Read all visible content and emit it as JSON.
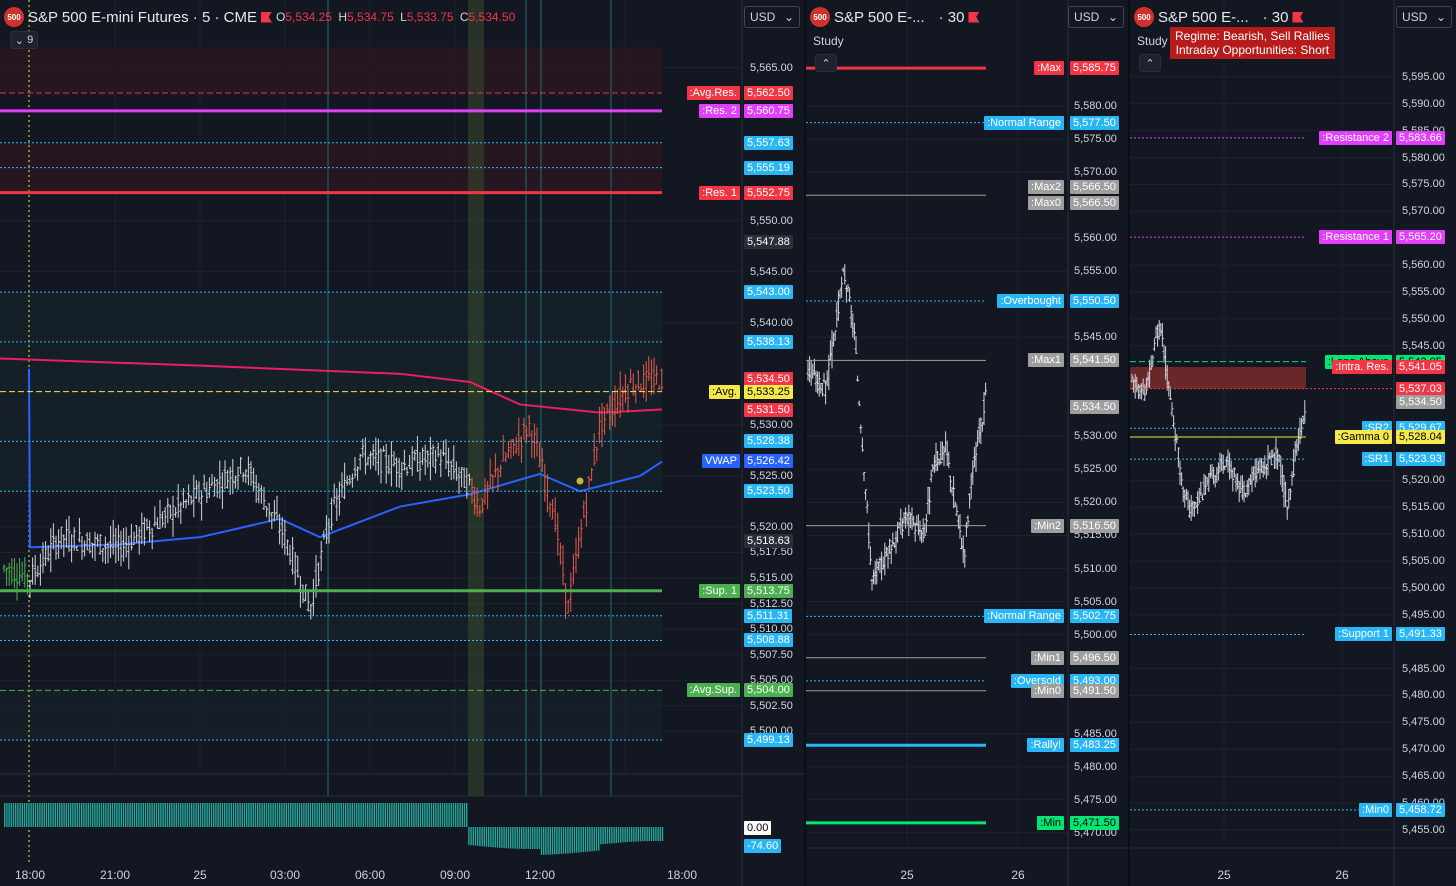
{
  "colors": {
    "red": "#f23645",
    "pink": "#e91e63",
    "magenta": "#e040fb",
    "green": "#4caf50",
    "lime": "#00e676",
    "yellow": "#f5e94a",
    "blue": "#2962ff",
    "cyan": "#29b6f6",
    "gray": "#9e9e9e",
    "panel_bg": "#131722"
  },
  "pane1": {
    "badge": "500",
    "title": "S&P 500 E-mini Futures · 5 · CME",
    "ohlc": [
      {
        "k": "O",
        "v": "5,534.25"
      },
      {
        "k": "H",
        "v": "5,534.75"
      },
      {
        "k": "L",
        "v": "5,533.75"
      },
      {
        "k": "C",
        "v": "5,534.50"
      }
    ],
    "indicator_count": "9",
    "currency": "USD",
    "price_min": 5496,
    "price_max": 5567.5,
    "ticks": [
      "5,565.00",
      "5,550.00",
      "5,545.00",
      "5,540.00",
      "5,530.00",
      "5,525.00",
      "5,520.00",
      "5,517.50",
      "5,515.00",
      "5,512.50",
      "5,510.00",
      "5,507.50",
      "5,505.00",
      "5,502.50",
      "5,500.00"
    ],
    "tick_values": [
      5565,
      5550,
      5545,
      5540,
      5530,
      5525,
      5520,
      5517.5,
      5515,
      5512.5,
      5510,
      5507.5,
      5505,
      5502.5,
      5500
    ],
    "levels": [
      {
        "name": ":Avg.Res.",
        "price": "5,562.50",
        "value": 5562.5,
        "color": "#f23645",
        "line": "dash"
      },
      {
        "name": ":Res. 2",
        "price": "5,560.75",
        "value": 5560.75,
        "color": "#e040fb",
        "line": "solid"
      },
      {
        "name": "",
        "price": "5,557.63",
        "value": 5557.63,
        "color": "#29b6f6",
        "line": "dot"
      },
      {
        "name": "",
        "price": "5,555.19",
        "value": 5555.19,
        "color": "#29b6f6",
        "line": "dot"
      },
      {
        "name": ":Res. 1",
        "price": "5,552.75",
        "value": 5552.75,
        "color": "#f23645",
        "line": "solid"
      },
      {
        "name": "",
        "price": "5,547.88",
        "value": 5547.88,
        "color": "#434651",
        "line": "none"
      },
      {
        "name": "",
        "price": "5,543.00",
        "value": 5543,
        "color": "#29b6f6",
        "line": "dot"
      },
      {
        "name": "",
        "price": "5,538.13",
        "value": 5538.13,
        "color": "#29b6f6",
        "line": "dot"
      },
      {
        "name": "",
        "price": "5,534.50",
        "value": 5534.5,
        "color": "#f23645",
        "line": "none"
      },
      {
        "name": ":Avg.",
        "price": "5,533.25",
        "value": 5533.25,
        "color": "#f5e94a",
        "line": "dash"
      },
      {
        "name": "",
        "price": "5,531.50",
        "value": 5531.5,
        "color": "#f23645",
        "line": "none"
      },
      {
        "name": "",
        "price": "5,528.38",
        "value": 5528.38,
        "color": "#29b6f6",
        "line": "dot"
      },
      {
        "name": "VWAP",
        "price": "5,526.42",
        "value": 5526.42,
        "color": "#2962ff",
        "line": "none"
      },
      {
        "name": "",
        "price": "5,523.50",
        "value": 5523.5,
        "color": "#29b6f6",
        "line": "dot"
      },
      {
        "name": "",
        "price": "5,518.63",
        "value": 5518.63,
        "color": "#434651",
        "line": "none"
      },
      {
        "name": ":Sup. 1",
        "price": "5,513.75",
        "value": 5513.75,
        "color": "#4caf50",
        "line": "solid"
      },
      {
        "name": "",
        "price": "5,511.31",
        "value": 5511.31,
        "color": "#29b6f6",
        "line": "dot"
      },
      {
        "name": "",
        "price": "5,508.88",
        "value": 5508.88,
        "color": "#29b6f6",
        "line": "dot"
      },
      {
        "name": ":Avg.Sup.",
        "price": "5,504.00",
        "value": 5504,
        "color": "#4caf50",
        "line": "dash"
      },
      {
        "name": "",
        "price": "5,499.13",
        "value": 5499.13,
        "color": "#29b6f6",
        "line": "dot"
      }
    ],
    "volume_labels": [
      "0.00",
      "-74.60"
    ],
    "time_labels": [
      "18:00",
      "21:00",
      "25",
      "03:00",
      "06:00",
      "09:00",
      "12:00",
      "18:00"
    ]
  },
  "pane2": {
    "badge": "500",
    "title": "S&P 500 E-...",
    "interval": "· 30",
    "study": "Study",
    "currency": "USD",
    "price_min": 5468,
    "price_max": 5590,
    "ticks": [
      "5,580.00",
      "5,575.00",
      "5,570.00",
      "5,560.00",
      "5,555.00",
      "5,545.00",
      "5,530.00",
      "5,525.00",
      "5,520.00",
      "5,515.00",
      "5,510.00",
      "5,505.00",
      "5,500.00",
      "5,485.00",
      "5,480.00",
      "5,475.00",
      "5,470.00"
    ],
    "tick_values": [
      5580,
      5575,
      5570,
      5560,
      5555,
      5545,
      5530,
      5525,
      5520,
      5515,
      5510,
      5505,
      5500,
      5485,
      5480,
      5475,
      5470
    ],
    "levels": [
      {
        "name": ":Max",
        "price": "5,585.75",
        "value": 5585.75,
        "color": "#f23645",
        "line": "solid"
      },
      {
        "name": ":Normal Range",
        "price": "5,577.50",
        "value": 5577.5,
        "color": "#29b6f6",
        "line": "dot"
      },
      {
        "name": ":Max2",
        "price": "5,566.50",
        "value": 5566.5,
        "color": "#9e9e9e",
        "line": "solid",
        "offset": -8
      },
      {
        "name": ":Max0",
        "price": "5,566.50",
        "value": 5566.5,
        "color": "#9e9e9e",
        "line": "none",
        "offset": 8
      },
      {
        "name": ":Overbought",
        "price": "5,550.50",
        "value": 5550.5,
        "color": "#29b6f6",
        "line": "dot"
      },
      {
        "name": ":Max1",
        "price": "5,541.50",
        "value": 5541.5,
        "color": "#9e9e9e",
        "line": "solid"
      },
      {
        "name": "",
        "price": "5,534.50",
        "value": 5534.5,
        "color": "#9e9e9e",
        "line": "none"
      },
      {
        "name": ":Min2",
        "price": "5,516.50",
        "value": 5516.5,
        "color": "#9e9e9e",
        "line": "solid"
      },
      {
        "name": ":Normal Range",
        "price": "5,502.75",
        "value": 5502.75,
        "color": "#29b6f6",
        "line": "dot"
      },
      {
        "name": ":Min1",
        "price": "5,496.50",
        "value": 5496.5,
        "color": "#9e9e9e",
        "line": "solid"
      },
      {
        "name": ":Oversold",
        "price": "5,493.00",
        "value": 5493,
        "color": "#29b6f6",
        "line": "dot"
      },
      {
        "name": ":Min0",
        "price": "5,491.50",
        "value": 5491.5,
        "color": "#9e9e9e",
        "line": "solid"
      },
      {
        "name": ":Rally!",
        "price": "5,483.25",
        "value": 5483.25,
        "color": "#29b6f6",
        "line": "solid"
      },
      {
        "name": ":Min",
        "price": "5,471.50",
        "value": 5471.5,
        "color": "#00e676",
        "line": "solid"
      }
    ],
    "time_labels": [
      "25",
      "26"
    ]
  },
  "pane3": {
    "badge": "500",
    "title": "S&P 500 E-...",
    "interval": "· 30",
    "study": "Study",
    "currency": "USD",
    "regime": [
      "Regime: Bearish, Sell Rallies",
      "Intraday Opportunities: Short"
    ],
    "price_min": 5452,
    "price_max": 5600,
    "ticks": [
      "5,595.00",
      "5,590.00",
      "5,585.00",
      "5,580.00",
      "5,575.00",
      "5,570.00",
      "5,560.00",
      "5,555.00",
      "5,550.00",
      "5,545.00",
      "5,520.00",
      "5,515.00",
      "5,510.00",
      "5,505.00",
      "5,500.00",
      "5,495.00",
      "5,485.00",
      "5,480.00",
      "5,475.00",
      "5,470.00",
      "5,465.00",
      "5,460.00",
      "5,455.00"
    ],
    "tick_values": [
      5595,
      5590,
      5585,
      5580,
      5575,
      5570,
      5560,
      5555,
      5550,
      5545,
      5520,
      5515,
      5510,
      5505,
      5500,
      5495,
      5485,
      5480,
      5475,
      5470,
      5465,
      5460,
      5455
    ],
    "levels": [
      {
        "name": ":Resistance 2",
        "price": "5,583.66",
        "value": 5583.66,
        "color": "#e040fb",
        "line": "dot"
      },
      {
        "name": ":Resistance 1",
        "price": "5,565.20",
        "value": 5565.2,
        "color": "#e040fb",
        "line": "dot"
      },
      {
        "name": ":Long Above",
        "price": "5,542.05",
        "value": 5542.05,
        "color": "#00e676",
        "line": "dash"
      },
      {
        "name": ":Intra. Res.",
        "price": "5,541.05",
        "value": 5541.05,
        "color": "#f23645",
        "line": "none"
      },
      {
        "name": "",
        "price": "5,537.03",
        "value": 5537.03,
        "color": "#f23645",
        "line": "dotext"
      },
      {
        "name": "",
        "price": "5,534.50",
        "value": 5534.5,
        "color": "#9e9e9e",
        "line": "none"
      },
      {
        "name": ":SR2",
        "price": "5,529.67",
        "value": 5529.67,
        "color": "#29b6f6",
        "line": "dot"
      },
      {
        "name": ":Gamma 0",
        "price": "5,528.04",
        "value": 5528.04,
        "color": "#f5e94a",
        "line": "solid"
      },
      {
        "name": ":SR1",
        "price": "5,523.93",
        "value": 5523.93,
        "color": "#29b6f6",
        "line": "dot"
      },
      {
        "name": ":Support 1",
        "price": "5,491.33",
        "value": 5491.33,
        "color": "#29b6f6",
        "line": "dot"
      },
      {
        "name": ":Min0",
        "price": "5,458.72",
        "value": 5458.72,
        "color": "#29b6f6",
        "line": "dotext"
      }
    ],
    "time_labels": [
      "25",
      "26"
    ]
  }
}
